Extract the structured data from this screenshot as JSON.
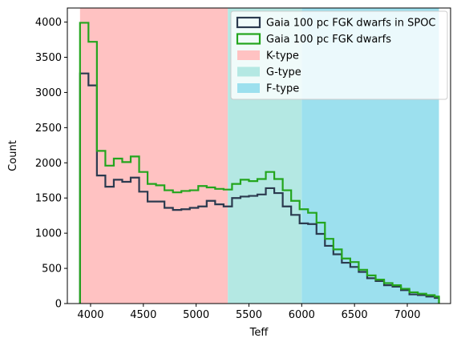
{
  "chart_data": {
    "type": "histogram",
    "xlabel": "Teff",
    "ylabel": "Count",
    "xlim": [
      3780,
      7410
    ],
    "ylim": [
      0,
      4200
    ],
    "x_ticks": [
      4000,
      4500,
      5000,
      5500,
      6000,
      6500,
      7000
    ],
    "y_ticks": [
      0,
      500,
      1000,
      1500,
      2000,
      2500,
      3000,
      3500,
      4000
    ],
    "grid": false,
    "legend_position": "top-right",
    "bin_edges": [
      3900,
      3980,
      4060,
      4140,
      4220,
      4300,
      4380,
      4460,
      4540,
      4620,
      4700,
      4780,
      4860,
      4940,
      5020,
      5100,
      5180,
      5260,
      5340,
      5420,
      5500,
      5580,
      5660,
      5740,
      5820,
      5900,
      5980,
      6060,
      6140,
      6220,
      6300,
      6380,
      6460,
      6540,
      6620,
      6700,
      6780,
      6860,
      6940,
      7020,
      7100,
      7180,
      7260,
      7300
    ],
    "bands": [
      {
        "name": "K-type",
        "range": [
          3900,
          5300
        ],
        "color": "#ffc2c2"
      },
      {
        "name": "G-type",
        "range": [
          5300,
          6000
        ],
        "color": "#b4e8e3"
      },
      {
        "name": "F-type",
        "range": [
          6000,
          7300
        ],
        "color": "#9ce0ee"
      }
    ],
    "series": [
      {
        "name": "Gaia 100 pc FGK dwarfs in SPOC",
        "color": "#2b3a4f",
        "values": [
          3270,
          3100,
          1820,
          1660,
          1760,
          1730,
          1790,
          1590,
          1450,
          1450,
          1360,
          1330,
          1340,
          1360,
          1380,
          1460,
          1410,
          1380,
          1500,
          1520,
          1530,
          1550,
          1640,
          1570,
          1380,
          1260,
          1140,
          1130,
          990,
          820,
          700,
          580,
          520,
          450,
          360,
          320,
          260,
          240,
          190,
          130,
          120,
          100,
          80
        ]
      },
      {
        "name": "Gaia 100 pc FGK dwarfs",
        "color": "#23a51d",
        "values": [
          3990,
          3720,
          2170,
          1960,
          2060,
          2010,
          2090,
          1870,
          1700,
          1680,
          1610,
          1580,
          1600,
          1610,
          1670,
          1650,
          1630,
          1620,
          1700,
          1760,
          1740,
          1770,
          1870,
          1770,
          1610,
          1460,
          1340,
          1290,
          1150,
          920,
          770,
          640,
          590,
          480,
          400,
          340,
          290,
          260,
          210,
          160,
          140,
          120,
          100
        ]
      }
    ]
  }
}
